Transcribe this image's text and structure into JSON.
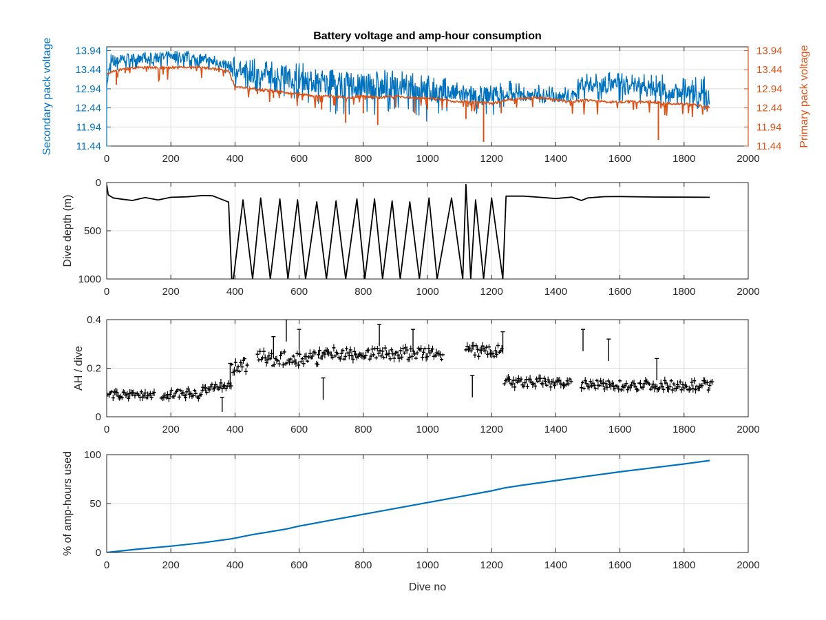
{
  "figure": {
    "title": "Battery voltage and amp-hour consumption"
  },
  "colors": {
    "secondary": "#0072BD",
    "primary": "#D95319",
    "black": "#000000",
    "grid": "#dddddd",
    "axes": "#262626"
  },
  "chart_data": [
    {
      "id": "voltage",
      "type": "line",
      "title": "Battery voltage and amp-hour consumption",
      "xlabel": "",
      "ylabel": "Secondary pack voltage",
      "y2label": "Primary pack voltage",
      "xlim": [
        0,
        2000
      ],
      "ylim": [
        11.44,
        14.04
      ],
      "y2lim": [
        11.44,
        14.04
      ],
      "xticks": [
        0,
        200,
        400,
        600,
        800,
        1000,
        1200,
        1400,
        1600,
        1800,
        2000
      ],
      "yticks": [
        11.44,
        11.94,
        12.44,
        12.94,
        13.44,
        13.94
      ],
      "ytick_labels": [
        "11.44",
        "11.94",
        "12.44",
        "12.94",
        "13.44",
        "13.94"
      ],
      "grid": true,
      "series": [
        {
          "name": "Secondary pack voltage",
          "axis": "left",
          "color": "#0072BD",
          "x": [
            0,
            10,
            30,
            60,
            100,
            150,
            200,
            250,
            300,
            350,
            380,
            400,
            420,
            450,
            500,
            550,
            600,
            650,
            700,
            750,
            800,
            850,
            900,
            950,
            1000,
            1050,
            1100,
            1150,
            1200,
            1250,
            1300,
            1350,
            1400,
            1450,
            1480,
            1500,
            1550,
            1600,
            1650,
            1700,
            1750,
            1800,
            1850,
            1880
          ],
          "y": [
            13.0,
            13.55,
            13.65,
            13.75,
            13.7,
            13.75,
            13.75,
            13.75,
            13.72,
            13.6,
            13.55,
            13.4,
            13.45,
            13.3,
            13.3,
            13.25,
            13.2,
            13.1,
            13.05,
            13.0,
            13.0,
            12.95,
            13.0,
            12.9,
            12.9,
            12.85,
            12.8,
            12.7,
            12.8,
            12.8,
            12.75,
            12.8,
            12.75,
            12.7,
            13.1,
            13.05,
            13.05,
            13.0,
            12.95,
            12.95,
            12.9,
            12.85,
            12.8,
            12.7
          ],
          "max": [
            13.1,
            13.85,
            13.85,
            13.94,
            13.9,
            13.94,
            13.94,
            13.94,
            13.9,
            13.8,
            13.75,
            13.82,
            13.65,
            13.75,
            13.7,
            13.55,
            13.65,
            13.5,
            13.45,
            13.4,
            13.35,
            13.45,
            13.45,
            13.35,
            13.35,
            13.25,
            13.1,
            13.0,
            13.1,
            13.2,
            13.05,
            13.1,
            13.05,
            12.95,
            13.35,
            13.35,
            13.4,
            13.4,
            13.3,
            13.35,
            13.3,
            13.25,
            13.25,
            13.3
          ],
          "min": [
            12.95,
            13.3,
            13.4,
            13.45,
            13.4,
            13.45,
            13.45,
            13.45,
            13.45,
            13.35,
            13.3,
            12.9,
            13.1,
            12.8,
            12.9,
            12.7,
            12.6,
            12.5,
            12.3,
            12.2,
            12.3,
            12.2,
            12.4,
            12.3,
            12.05,
            12.3,
            12.3,
            12.2,
            12.2,
            12.55,
            12.55,
            12.55,
            12.55,
            12.5,
            12.6,
            12.6,
            12.6,
            12.55,
            12.55,
            12.55,
            12.5,
            12.45,
            12.4,
            12.3
          ]
        },
        {
          "name": "Primary pack voltage",
          "axis": "right",
          "color": "#D95319",
          "x": [
            0,
            20,
            50,
            100,
            150,
            200,
            250,
            300,
            350,
            380,
            400,
            450,
            500,
            550,
            600,
            650,
            700,
            750,
            800,
            850,
            900,
            950,
            1000,
            1050,
            1100,
            1150,
            1200,
            1250,
            1300,
            1350,
            1400,
            1450,
            1500,
            1550,
            1600,
            1650,
            1700,
            1750,
            1800,
            1850,
            1880
          ],
          "y": [
            13.3,
            13.4,
            13.45,
            13.5,
            13.5,
            13.5,
            13.5,
            13.5,
            13.45,
            13.4,
            13.0,
            12.95,
            12.9,
            12.85,
            12.8,
            12.75,
            12.75,
            12.7,
            12.75,
            12.7,
            12.75,
            12.7,
            12.7,
            12.65,
            12.6,
            12.6,
            12.55,
            12.65,
            12.7,
            12.7,
            12.65,
            12.6,
            12.65,
            12.6,
            12.6,
            12.6,
            12.6,
            12.55,
            12.55,
            12.5,
            12.45
          ],
          "dips": [
            [
              30,
              13.05
            ],
            [
              400,
              12.9
            ],
            [
              470,
              12.8
            ],
            [
              520,
              12.7
            ],
            [
              600,
              12.85
            ],
            [
              670,
              12.4
            ],
            [
              745,
              12.05
            ],
            [
              800,
              12.3
            ],
            [
              845,
              12.0
            ],
            [
              900,
              12.45
            ],
            [
              960,
              12.3
            ],
            [
              1000,
              12.4
            ],
            [
              1060,
              12.45
            ],
            [
              1120,
              12.15
            ],
            [
              1175,
              11.55
            ],
            [
              1230,
              12.3
            ],
            [
              1390,
              12.6
            ],
            [
              1720,
              11.6
            ]
          ]
        }
      ]
    },
    {
      "id": "depth",
      "type": "line",
      "xlabel": "",
      "ylabel": "Dive depth (m)",
      "xlim": [
        0,
        2000
      ],
      "ylim": [
        0,
        1000
      ],
      "y_reversed": true,
      "xticks": [
        0,
        200,
        400,
        600,
        800,
        1000,
        1200,
        1400,
        1600,
        1800,
        2000
      ],
      "yticks": [
        0,
        500,
        1000
      ],
      "grid": true,
      "series": [
        {
          "name": "",
          "color": "#000000",
          "x": [
            0,
            5,
            20,
            50,
            80,
            120,
            160,
            200,
            250,
            300,
            330,
            380,
            390,
            1240,
            1245,
            1300,
            1350,
            1400,
            1450,
            1480,
            1500,
            1550,
            1600,
            1700,
            1800,
            1880
          ],
          "y": [
            20,
            130,
            160,
            170,
            190,
            160,
            180,
            160,
            150,
            140,
            140,
            200,
            1000,
            1000,
            140,
            140,
            150,
            160,
            150,
            190,
            160,
            150,
            150,
            150,
            145,
            150
          ],
          "deep_cycles": {
            "bottom": 1000,
            "turnaround_x": [
              395,
              425,
              455,
              480,
              510,
              540,
              565,
              595,
              620,
              655,
              685,
              715,
              745,
              780,
              805,
              835,
              860,
              890,
              915,
              945,
              975,
              1005,
              1030,
              1075,
              1110,
              1120,
              1135,
              1150,
              1175,
              1200,
              1235
            ],
            "turnaround_depth": [
              1000,
              180,
              1000,
              160,
              1000,
              170,
              1000,
              180,
              1000,
              200,
              1000,
              190,
              1000,
              170,
              1000,
              170,
              1000,
              190,
              1000,
              200,
              1000,
              160,
              1000,
              160,
              1000,
              20,
              1000,
              180,
              1000,
              160,
              1000
            ]
          }
        }
      ]
    },
    {
      "id": "ah",
      "type": "scatter",
      "xlabel": "",
      "ylabel": "AH / dive",
      "xlim": [
        0,
        2000
      ],
      "ylim": [
        0,
        0.4
      ],
      "xticks": [
        0,
        200,
        400,
        600,
        800,
        1000,
        1200,
        1400,
        1600,
        1800,
        2000
      ],
      "yticks": [
        0,
        0.2,
        0.4
      ],
      "grid": true,
      "series": [
        {
          "name": "",
          "color": "#000000",
          "segments": [
            {
              "x_start": 0,
              "x_end": 150,
              "level": 0.09,
              "spread": 0.015
            },
            {
              "x_start": 170,
              "x_end": 300,
              "level": 0.095,
              "spread": 0.02
            },
            {
              "x_start": 300,
              "x_end": 390,
              "level": 0.12,
              "spread": 0.02
            },
            {
              "x_start": 390,
              "x_end": 440,
              "level": 0.21,
              "spread": 0.03
            },
            {
              "x_start": 470,
              "x_end": 660,
              "level": 0.24,
              "spread": 0.03
            },
            {
              "x_start": 660,
              "x_end": 1050,
              "level": 0.26,
              "spread": 0.025
            },
            {
              "x_start": 1120,
              "x_end": 1235,
              "level": 0.27,
              "spread": 0.025
            },
            {
              "x_start": 1240,
              "x_end": 1450,
              "level": 0.14,
              "spread": 0.02
            },
            {
              "x_start": 1480,
              "x_end": 1890,
              "level": 0.13,
              "spread": 0.02
            }
          ],
          "spikes": [
            [
              360,
              0.08
            ],
            [
              385,
              0.22
            ],
            [
              520,
              0.33
            ],
            [
              560,
              0.4
            ],
            [
              600,
              0.36
            ],
            [
              675,
              0.16
            ],
            [
              850,
              0.38
            ],
            [
              955,
              0.36
            ],
            [
              1140,
              0.17
            ],
            [
              1235,
              0.35
            ],
            [
              1485,
              0.36
            ],
            [
              1565,
              0.32
            ],
            [
              1715,
              0.24
            ]
          ]
        }
      ]
    },
    {
      "id": "percent",
      "type": "line",
      "xlabel": "Dive no",
      "ylabel": "% of amp-hours used",
      "xlim": [
        0,
        2000
      ],
      "ylim": [
        0,
        100
      ],
      "xticks": [
        0,
        200,
        400,
        600,
        800,
        1000,
        1200,
        1400,
        1600,
        1800,
        2000
      ],
      "yticks": [
        0,
        50,
        100
      ],
      "grid": true,
      "series": [
        {
          "name": "",
          "color": "#0072BD",
          "x": [
            0,
            100,
            200,
            300,
            390,
            450,
            560,
            600,
            700,
            800,
            900,
            1000,
            1100,
            1200,
            1240,
            1300,
            1400,
            1500,
            1600,
            1700,
            1800,
            1880
          ],
          "y": [
            0,
            3.5,
            6.5,
            10,
            14,
            18,
            24,
            27,
            33,
            39,
            45,
            51,
            57,
            63,
            66,
            69,
            73.5,
            78,
            82.5,
            86.5,
            90.5,
            94
          ]
        }
      ]
    }
  ]
}
